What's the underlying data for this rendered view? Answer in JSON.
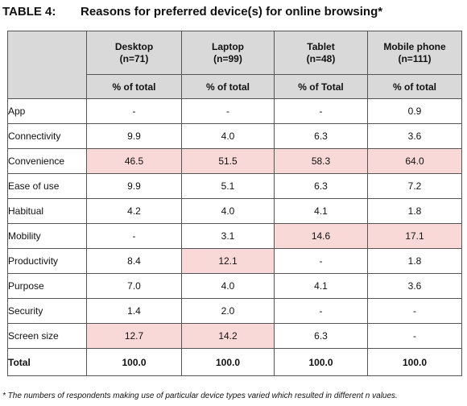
{
  "title": {
    "number": "TABLE 4:",
    "text": "Reasons for preferred device(s) for online browsing*"
  },
  "columns": [
    {
      "name": "Desktop",
      "n": "(n=71)",
      "unit": "% of total"
    },
    {
      "name": "Laptop",
      "n": "(n=99)",
      "unit": "% of total"
    },
    {
      "name": "Tablet",
      "n": "(n=48)",
      "unit": "% of Total"
    },
    {
      "name": "Mobile phone",
      "n": "(n=111)",
      "unit": "% of total"
    }
  ],
  "rows": [
    {
      "label": "App",
      "values": [
        "-",
        "-",
        "-",
        "0.9"
      ],
      "highlight": [
        false,
        false,
        false,
        false
      ]
    },
    {
      "label": "Connectivity",
      "values": [
        "9.9",
        "4.0",
        "6.3",
        "3.6"
      ],
      "highlight": [
        false,
        false,
        false,
        false
      ]
    },
    {
      "label": "Convenience",
      "values": [
        "46.5",
        "51.5",
        "58.3",
        "64.0"
      ],
      "highlight": [
        true,
        true,
        true,
        true
      ]
    },
    {
      "label": "Ease of use",
      "values": [
        "9.9",
        "5.1",
        "6.3",
        "7.2"
      ],
      "highlight": [
        false,
        false,
        false,
        false
      ]
    },
    {
      "label": "Habitual",
      "values": [
        "4.2",
        "4.0",
        "4.1",
        "1.8"
      ],
      "highlight": [
        false,
        false,
        false,
        false
      ]
    },
    {
      "label": "Mobility",
      "values": [
        "-",
        "3.1",
        "14.6",
        "17.1"
      ],
      "highlight": [
        false,
        false,
        true,
        true
      ]
    },
    {
      "label": "Productivity",
      "values": [
        "8.4",
        "12.1",
        "-",
        "1.8"
      ],
      "highlight": [
        false,
        true,
        false,
        false
      ]
    },
    {
      "label": "Purpose",
      "values": [
        "7.0",
        "4.0",
        "4.1",
        "3.6"
      ],
      "highlight": [
        false,
        false,
        false,
        false
      ]
    },
    {
      "label": "Security",
      "values": [
        "1.4",
        "2.0",
        "-",
        "-"
      ],
      "highlight": [
        false,
        false,
        false,
        false
      ]
    },
    {
      "label": "Screen size",
      "values": [
        "12.7",
        "14.2",
        "6.3",
        "-"
      ],
      "highlight": [
        true,
        true,
        false,
        false
      ]
    }
  ],
  "total": {
    "label": "Total",
    "values": [
      "100.0",
      "100.0",
      "100.0",
      "100.0"
    ]
  },
  "footnote": "* The numbers of respondents making use of particular device types varied which resulted in different n values.",
  "colors": {
    "header_bg": "#d9d9d9",
    "highlight_bg": "#f9d9d8",
    "border": "#555555"
  }
}
